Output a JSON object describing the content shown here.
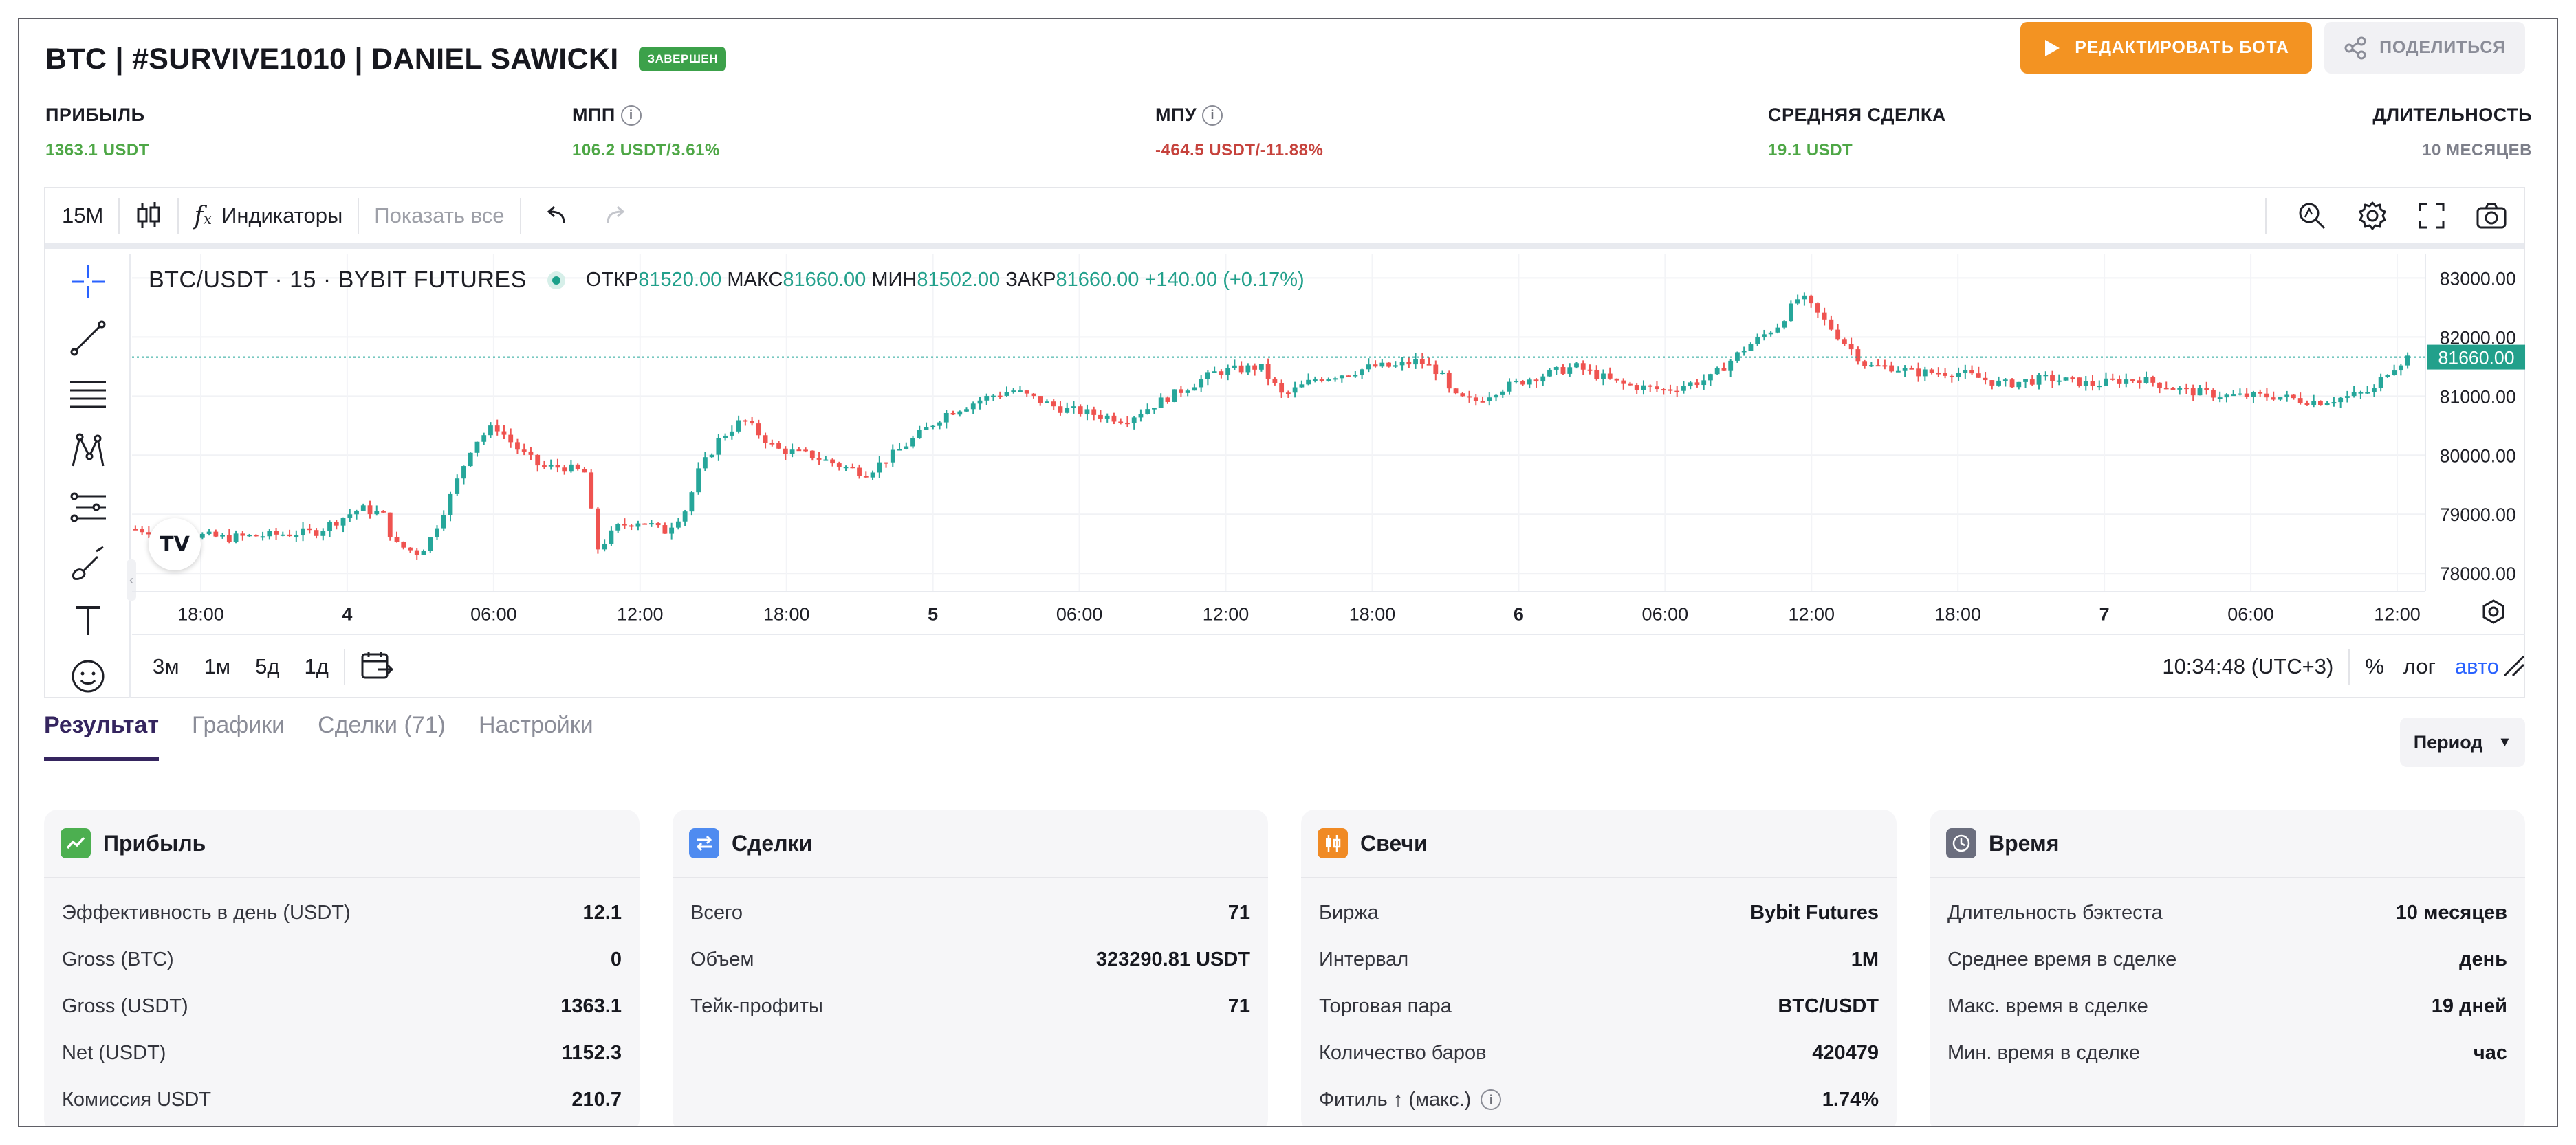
{
  "header": {
    "title": "BTC | #SURVIVE1010 | DANIEL SAWICKI",
    "status_badge": "ЗАВЕРШЕН",
    "edit_button": "РЕДАКТИРОВАТЬ БОТА",
    "share_button": "ПОДЕЛИТЬСЯ"
  },
  "stats": [
    {
      "label": "ПРИБЫЛЬ",
      "value": "1363.1 USDT",
      "color": "#4ea746"
    },
    {
      "label": "МПП",
      "value": "106.2 USDT/3.61%",
      "color": "#4ea746"
    },
    {
      "label": "МПУ",
      "value": "-464.5 USDT/-11.88%",
      "color": "#c6423c"
    },
    {
      "label": "СРЕДНЯЯ СДЕЛКА",
      "value": "19.1 USDT",
      "color": "#4ea746"
    },
    {
      "label": "ДЛИТЕЛЬНОСТЬ",
      "value": "10 МЕСЯЦЕВ",
      "color": "#7d7f8a"
    }
  ],
  "chart_toolbar": {
    "interval": "15M",
    "indicators": "Индикаторы",
    "show_all": "Показать все"
  },
  "chart_legend": {
    "symbol": "BTC/USDT · 15 · BYBIT FUTURES",
    "open_label": "ОТКР",
    "open": "81520.00",
    "high_label": "МАКС",
    "high": "81660.00",
    "low_label": "МИН",
    "low": "81502.00",
    "close_label": "ЗАКР",
    "close": "81660.00",
    "change": "+140.00 (+0.17%)"
  },
  "chart_bottom": {
    "ranges": [
      "3м",
      "1м",
      "5д",
      "1д"
    ],
    "clock": "10:34:48 (UTC+3)",
    "percent": "%",
    "log": "лог",
    "auto": "авто"
  },
  "chart_data": {
    "type": "candlestick",
    "title": "BTC/USDT · 15 · BYBIT FUTURES",
    "last_price": "81660.00",
    "price_ticks": [
      "83000.00",
      "82000.00",
      "81000.00",
      "80000.00",
      "79000.00",
      "78000.00"
    ],
    "ylim": [
      77700,
      83400
    ],
    "time_ticks": [
      "18:00",
      "4",
      "06:00",
      "12:00",
      "18:00",
      "5",
      "06:00",
      "12:00",
      "18:00",
      "6",
      "06:00",
      "12:00",
      "18:00",
      "7",
      "06:00",
      "12:00"
    ],
    "bold_ticks": [
      "4",
      "5",
      "6",
      "7"
    ],
    "price_path": [
      [
        0,
        78750
      ],
      [
        40,
        78600
      ],
      [
        60,
        78650
      ],
      [
        80,
        78700
      ],
      [
        90,
        78900
      ],
      [
        100,
        79100
      ],
      [
        110,
        79000
      ],
      [
        115,
        78500
      ],
      [
        125,
        78350
      ],
      [
        130,
        78500
      ],
      [
        140,
        79300
      ],
      [
        150,
        80200
      ],
      [
        160,
        80500
      ],
      [
        170,
        80100
      ],
      [
        180,
        79800
      ],
      [
        190,
        79800
      ],
      [
        200,
        79700
      ],
      [
        205,
        78400
      ],
      [
        215,
        78800
      ],
      [
        225,
        78900
      ],
      [
        235,
        78700
      ],
      [
        245,
        79100
      ],
      [
        250,
        79700
      ],
      [
        260,
        80300
      ],
      [
        270,
        80600
      ],
      [
        285,
        80100
      ],
      [
        300,
        80000
      ],
      [
        315,
        79800
      ],
      [
        325,
        79700
      ],
      [
        340,
        80100
      ],
      [
        360,
        80700
      ],
      [
        380,
        81000
      ],
      [
        390,
        81100
      ],
      [
        410,
        80800
      ],
      [
        440,
        80600
      ],
      [
        460,
        81000
      ],
      [
        480,
        81400
      ],
      [
        500,
        81500
      ],
      [
        510,
        81000
      ],
      [
        525,
        81300
      ],
      [
        540,
        81400
      ],
      [
        550,
        81500
      ],
      [
        560,
        81500
      ],
      [
        570,
        81600
      ],
      [
        580,
        81400
      ],
      [
        585,
        81000
      ],
      [
        595,
        80900
      ],
      [
        605,
        81100
      ],
      [
        620,
        81300
      ],
      [
        640,
        81500
      ],
      [
        660,
        81200
      ],
      [
        680,
        81100
      ],
      [
        700,
        81300
      ],
      [
        715,
        81800
      ],
      [
        730,
        82200
      ],
      [
        740,
        82700
      ],
      [
        750,
        82300
      ],
      [
        760,
        81900
      ],
      [
        770,
        81500
      ],
      [
        780,
        81500
      ],
      [
        790,
        81400
      ],
      [
        810,
        81400
      ],
      [
        830,
        81200
      ],
      [
        850,
        81300
      ],
      [
        870,
        81200
      ],
      [
        890,
        81300
      ],
      [
        910,
        81100
      ],
      [
        930,
        81000
      ],
      [
        950,
        81000
      ],
      [
        970,
        80900
      ],
      [
        985,
        81000
      ],
      [
        995,
        81100
      ],
      [
        1000,
        81400
      ],
      [
        1010,
        81660
      ]
    ]
  },
  "tabs": [
    "Результат",
    "Графики",
    "Сделки (71)",
    "Настройки"
  ],
  "period_button": "Период",
  "cards": [
    {
      "title": "Прибыль",
      "icon": "trend-up-icon",
      "icon_color": "#4caf50",
      "rows": [
        {
          "label": "Эффективность в день (USDT)",
          "value": "12.1"
        },
        {
          "label": "Gross (BTC)",
          "value": "0"
        },
        {
          "label": "Gross (USDT)",
          "value": "1363.1"
        },
        {
          "label": "Net (USDT)",
          "value": "1152.3"
        },
        {
          "label": "Комиссия USDT",
          "value": "210.7"
        }
      ]
    },
    {
      "title": "Сделки",
      "icon": "swap-arrows-icon",
      "icon_color": "#4f8bf0",
      "rows": [
        {
          "label": "Всего",
          "value": "71"
        },
        {
          "label": "Объем",
          "value": "323290.81 USDT"
        },
        {
          "label": "Тейк-профиты",
          "value": "71"
        }
      ]
    },
    {
      "title": "Свечи",
      "icon": "candles-icon",
      "icon_color": "#f08a24",
      "rows": [
        {
          "label": "Биржа",
          "value": "Bybit Futures"
        },
        {
          "label": "Интервал",
          "value": "1M"
        },
        {
          "label": "Торговая пара",
          "value": "BTC/USDT"
        },
        {
          "label": "Количество баров",
          "value": "420479"
        },
        {
          "label": "Фитиль ↑ (макс.)",
          "value": "1.74%"
        }
      ]
    },
    {
      "title": "Время",
      "icon": "clock-icon",
      "icon_color": "#6b6e7e",
      "rows": [
        {
          "label": "Длительность бэктеста",
          "value": "10 месяцев"
        },
        {
          "label": "Среднее время в сделке",
          "value": "день"
        },
        {
          "label": "Макс. время в сделке",
          "value": "19 дней"
        },
        {
          "label": "Мин. время в сделке",
          "value": "час"
        }
      ]
    }
  ]
}
